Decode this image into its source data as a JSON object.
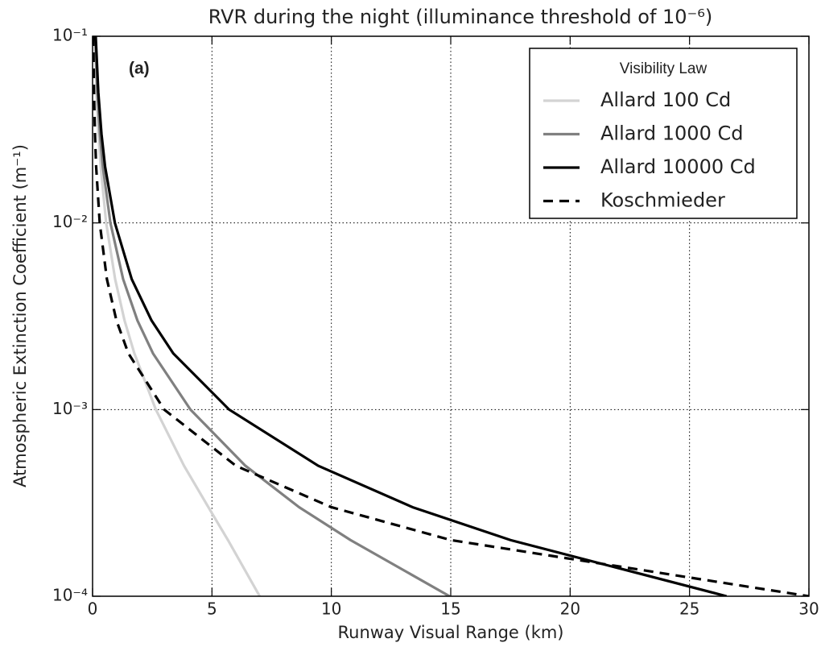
{
  "chart_data": {
    "type": "line",
    "title": "RVR during the night (illuminance threshold of 10⁻⁶)",
    "x_label": "Runway Visual Range (km)",
    "y_label": "Atmospheric Extinction Coefficient (m⁻¹)",
    "annotation": "(a)",
    "legend_title": "Visibility Law",
    "legend_position": "upper right",
    "y_scale": "log",
    "grid": true,
    "xlim": [
      0,
      30
    ],
    "xticks": [
      0,
      5,
      10,
      15,
      20,
      25,
      30
    ],
    "ylim": [
      0.0001,
      0.1
    ],
    "yticks": [
      {
        "value": 0.0001,
        "label": "10⁻⁴"
      },
      {
        "value": 0.001,
        "label": "10⁻³"
      },
      {
        "value": 0.01,
        "label": "10⁻²"
      },
      {
        "value": 0.1,
        "label": "10⁻¹"
      }
    ],
    "series": [
      {
        "name": "Allard 100 Cd",
        "color": "#d3d3d3",
        "linestyle": "solid",
        "x": [
          0.093,
          0.164,
          0.247,
          0.34,
          0.57,
          0.945,
          1.34,
          1.75,
          2.65,
          3.83,
          4.85,
          5.67,
          7.0
        ],
        "values": [
          0.1,
          0.05,
          0.03,
          0.02,
          0.01,
          0.005,
          0.003,
          0.002,
          0.001,
          0.0005,
          0.0003,
          0.0002,
          0.0001
        ]
      },
      {
        "name": "Allard 1000 Cd",
        "color": "#808080",
        "linestyle": "solid",
        "x": [
          0.113,
          0.202,
          0.308,
          0.43,
          0.748,
          1.28,
          1.88,
          2.53,
          4.1,
          6.4,
          8.65,
          10.8,
          14.95
        ],
        "values": [
          0.1,
          0.05,
          0.03,
          0.02,
          0.01,
          0.005,
          0.003,
          0.002,
          0.001,
          0.0005,
          0.0003,
          0.0002,
          0.0001
        ]
      },
      {
        "name": "Allard 10000 Cd",
        "color": "#000000",
        "linestyle": "solid",
        "x": [
          0.132,
          0.241,
          0.373,
          0.525,
          0.935,
          1.64,
          2.47,
          3.38,
          5.72,
          9.45,
          13.4,
          17.5,
          26.55
        ],
        "values": [
          0.1,
          0.05,
          0.03,
          0.02,
          0.01,
          0.005,
          0.003,
          0.002,
          0.001,
          0.0005,
          0.0003,
          0.0002,
          0.0001
        ]
      },
      {
        "name": "Koschmieder",
        "color": "#000000",
        "linestyle": "dashed",
        "x": [
          0.03,
          0.06,
          0.1,
          0.15,
          0.3,
          0.6,
          1,
          1.5,
          3,
          6,
          10,
          15,
          30
        ],
        "values": [
          0.1,
          0.05,
          0.03,
          0.02,
          0.01,
          0.005,
          0.003,
          0.002,
          0.001,
          0.0005,
          0.0003,
          0.0002,
          0.0001
        ]
      }
    ]
  }
}
